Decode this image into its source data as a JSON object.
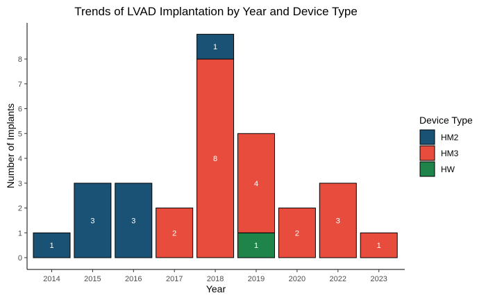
{
  "chart_data": {
    "type": "bar",
    "stacked": true,
    "title": "Trends of LVAD Implantation by Year and Device Type",
    "xlabel": "Year",
    "ylabel": "Number of Implants",
    "categories": [
      "2014",
      "2015",
      "2016",
      "2017",
      "2018",
      "2019",
      "2020",
      "2022",
      "2023"
    ],
    "series": [
      {
        "name": "HW",
        "color": "#1e8449",
        "values": [
          0,
          0,
          0,
          0,
          0,
          1,
          0,
          0,
          0
        ]
      },
      {
        "name": "HM3",
        "color": "#e74c3c",
        "values": [
          0,
          0,
          0,
          2,
          8,
          4,
          2,
          3,
          1
        ]
      },
      {
        "name": "HM2",
        "color": "#1a5276",
        "values": [
          1,
          3,
          3,
          0,
          1,
          0,
          0,
          0,
          0
        ]
      }
    ],
    "stack_order_bottom_to_top": [
      "HW",
      "HM3",
      "HM2"
    ],
    "yticks": [
      0,
      1,
      2,
      3,
      4,
      5,
      6,
      7,
      8
    ],
    "ylim": [
      0,
      9
    ],
    "grid": false,
    "legend": {
      "title": "Device Type",
      "position": "right",
      "items": [
        "HM2",
        "HM3",
        "HW"
      ]
    }
  }
}
